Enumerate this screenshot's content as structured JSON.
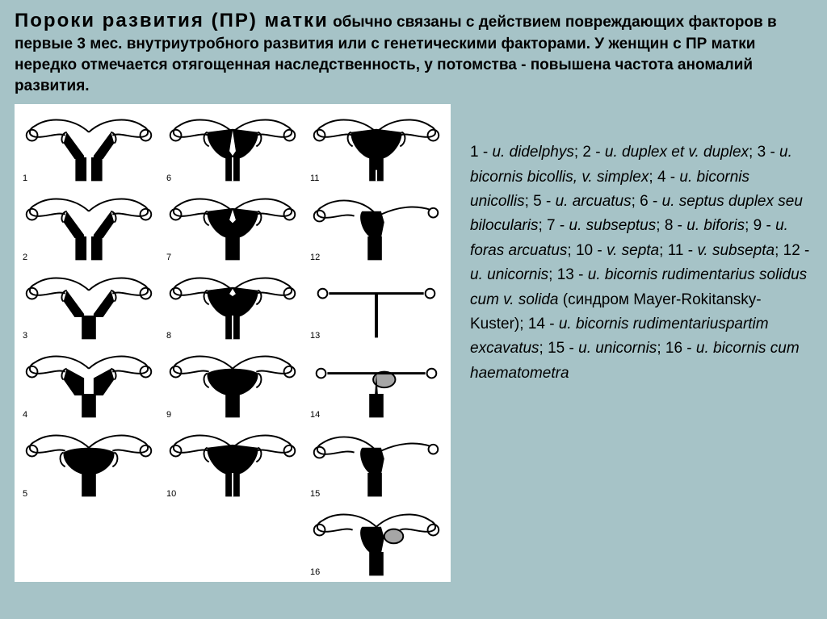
{
  "header": {
    "title": "Пороки развития (ПР) матки",
    "body": " обычно связаны с действием повреждающих факторов в первые 3 мес. внутриутробного развития или с генетическими факторами. У женщин с ПР матки нередко отмечается отягощенная наследственность, у потомства - повышена частота аномалий развития."
  },
  "diagram": {
    "background": "#ffffff",
    "stroke": "#000000",
    "fill": "#000000",
    "rows": 6,
    "cols": 3,
    "cells": [
      {
        "n": 1,
        "type": "didelphys"
      },
      {
        "n": 2,
        "type": "duplex"
      },
      {
        "n": 3,
        "type": "bicornis_bicollis"
      },
      {
        "n": 4,
        "type": "bicornis_unicollis"
      },
      {
        "n": 5,
        "type": "arcuatus"
      },
      {
        "n": 6,
        "type": "septus_duplex"
      },
      {
        "n": 7,
        "type": "subseptus"
      },
      {
        "n": 8,
        "type": "biforis"
      },
      {
        "n": 9,
        "type": "foras_arcuatus"
      },
      {
        "n": 10,
        "type": "v_septa"
      },
      {
        "n": 11,
        "type": "v_subsepta"
      },
      {
        "n": 12,
        "type": "unicornis"
      },
      {
        "n": 13,
        "type": "bicornis_rudimentarius"
      },
      {
        "n": 14,
        "type": "bicornis_rud_excavatus"
      },
      {
        "n": 15,
        "type": "unicornis2"
      },
      {
        "n": 16,
        "type": "bicornis_haematometra"
      }
    ]
  },
  "legend": {
    "items": [
      {
        "n": "1",
        "lat": "u. didelphys"
      },
      {
        "n": "2",
        "lat": "u. duplex et v. duplex"
      },
      {
        "n": "3",
        "lat": "u. bicornis bicollis, v. simplex"
      },
      {
        "n": "4",
        "lat": "u. bicornis unicollis"
      },
      {
        "n": "5",
        "lat": "u. arcuatus"
      },
      {
        "n": "6",
        "lat": "u. septus duplex seu bilocularis"
      },
      {
        "n": "7",
        "lat": "u. subseptus"
      },
      {
        "n": "8",
        "lat": "u. biforis"
      },
      {
        "n": "9",
        "lat": "u. foras arcuatus"
      },
      {
        "n": "10",
        "lat": "v. septa"
      },
      {
        "n": "11",
        "lat": "v. subsepta"
      },
      {
        "n": "12",
        "lat": "u. unicornis"
      },
      {
        "n": "13",
        "lat": "u. bicornis rudimentarius solidus cum v. solida",
        "extra": " (синдром Mayer-Rokitansky-Kuster)"
      },
      {
        "n": "14",
        "lat": "u. bicornis rudimentariuspartim excavatus"
      },
      {
        "n": "15",
        "lat": "u. unicornis"
      },
      {
        "n": "16",
        "lat": "u. bicornis cum haematometra"
      }
    ]
  },
  "colors": {
    "page_bg": "#a6c3c7",
    "panel_bg": "#ffffff",
    "text": "#000000"
  }
}
